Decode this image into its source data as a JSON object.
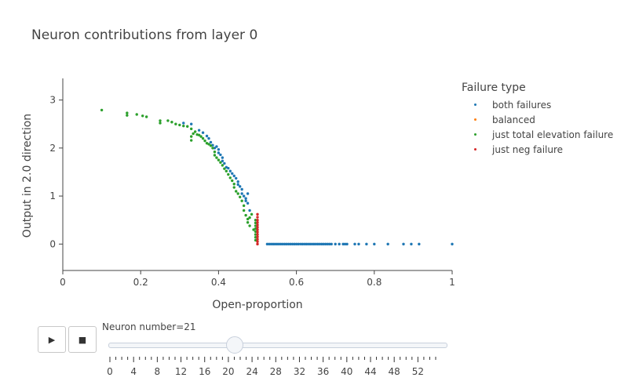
{
  "chart_data": {
    "type": "scatter",
    "title": "Neuron contributions from layer 0",
    "xlabel": "Open-proportion",
    "ylabel": "Output in 2.0 direction",
    "xlim": [
      0,
      1
    ],
    "ylim": [
      -0.55,
      3.45
    ],
    "x_ticks": [
      "0",
      "0.2",
      "0.4",
      "0.6",
      "0.8",
      "1"
    ],
    "y_ticks": [
      "0",
      "1",
      "2",
      "3"
    ],
    "legend_title": "Failure type",
    "legend_position": "top-right",
    "grid": false,
    "series": [
      {
        "name": "both failures",
        "color": "#1f77b4",
        "points": [
          [
            0.31,
            2.52
          ],
          [
            0.33,
            2.5
          ],
          [
            0.35,
            2.37
          ],
          [
            0.36,
            2.32
          ],
          [
            0.37,
            2.25
          ],
          [
            0.375,
            2.2
          ],
          [
            0.38,
            2.12
          ],
          [
            0.385,
            2.06
          ],
          [
            0.39,
            2.0
          ],
          [
            0.395,
            2.03
          ],
          [
            0.4,
            1.97
          ],
          [
            0.4,
            1.9
          ],
          [
            0.405,
            1.86
          ],
          [
            0.41,
            1.8
          ],
          [
            0.41,
            1.73
          ],
          [
            0.415,
            1.68
          ],
          [
            0.42,
            1.6
          ],
          [
            0.425,
            1.58
          ],
          [
            0.43,
            1.52
          ],
          [
            0.435,
            1.47
          ],
          [
            0.44,
            1.42
          ],
          [
            0.445,
            1.37
          ],
          [
            0.45,
            1.3
          ],
          [
            0.45,
            1.24
          ],
          [
            0.455,
            1.2
          ],
          [
            0.46,
            1.14
          ],
          [
            0.46,
            1.05
          ],
          [
            0.465,
            1.0
          ],
          [
            0.47,
            0.95
          ],
          [
            0.47,
            0.9
          ],
          [
            0.475,
            0.85
          ],
          [
            0.475,
            1.05
          ],
          [
            0.48,
            0.7
          ],
          [
            0.525,
            0
          ],
          [
            0.53,
            0
          ],
          [
            0.535,
            0
          ],
          [
            0.54,
            0
          ],
          [
            0.545,
            0
          ],
          [
            0.55,
            0
          ],
          [
            0.555,
            0
          ],
          [
            0.56,
            0
          ],
          [
            0.565,
            0
          ],
          [
            0.57,
            0
          ],
          [
            0.575,
            0
          ],
          [
            0.58,
            0
          ],
          [
            0.585,
            0
          ],
          [
            0.59,
            0
          ],
          [
            0.595,
            0
          ],
          [
            0.6,
            0
          ],
          [
            0.605,
            0
          ],
          [
            0.61,
            0
          ],
          [
            0.615,
            0
          ],
          [
            0.62,
            0
          ],
          [
            0.625,
            0
          ],
          [
            0.63,
            0
          ],
          [
            0.635,
            0
          ],
          [
            0.64,
            0
          ],
          [
            0.645,
            0
          ],
          [
            0.65,
            0
          ],
          [
            0.655,
            0
          ],
          [
            0.66,
            0
          ],
          [
            0.665,
            0
          ],
          [
            0.67,
            0
          ],
          [
            0.675,
            0
          ],
          [
            0.68,
            0
          ],
          [
            0.685,
            0
          ],
          [
            0.69,
            0
          ],
          [
            0.7,
            0
          ],
          [
            0.71,
            0
          ],
          [
            0.72,
            0
          ],
          [
            0.725,
            0
          ],
          [
            0.73,
            0
          ],
          [
            0.75,
            0
          ],
          [
            0.76,
            0
          ],
          [
            0.78,
            0
          ],
          [
            0.8,
            0
          ],
          [
            0.835,
            0
          ],
          [
            0.875,
            0
          ],
          [
            0.895,
            0
          ],
          [
            0.915,
            0
          ],
          [
            1.0,
            0
          ]
        ]
      },
      {
        "name": "balanced",
        "color": "#ff7f0e",
        "points": []
      },
      {
        "name": "just total elevation failure",
        "color": "#2ca02c",
        "points": [
          [
            0.1,
            2.79
          ],
          [
            0.165,
            2.73
          ],
          [
            0.165,
            2.68
          ],
          [
            0.19,
            2.7
          ],
          [
            0.205,
            2.67
          ],
          [
            0.215,
            2.65
          ],
          [
            0.25,
            2.57
          ],
          [
            0.25,
            2.52
          ],
          [
            0.27,
            2.57
          ],
          [
            0.28,
            2.54
          ],
          [
            0.29,
            2.5
          ],
          [
            0.3,
            2.48
          ],
          [
            0.31,
            2.46
          ],
          [
            0.32,
            2.45
          ],
          [
            0.33,
            2.4
          ],
          [
            0.33,
            2.24
          ],
          [
            0.33,
            2.16
          ],
          [
            0.335,
            2.3
          ],
          [
            0.34,
            2.34
          ],
          [
            0.345,
            2.28
          ],
          [
            0.35,
            2.27
          ],
          [
            0.355,
            2.24
          ],
          [
            0.36,
            2.2
          ],
          [
            0.365,
            2.15
          ],
          [
            0.37,
            2.1
          ],
          [
            0.375,
            2.08
          ],
          [
            0.38,
            2.05
          ],
          [
            0.385,
            2.0
          ],
          [
            0.39,
            1.92
          ],
          [
            0.39,
            1.85
          ],
          [
            0.395,
            1.8
          ],
          [
            0.4,
            1.75
          ],
          [
            0.405,
            1.7
          ],
          [
            0.41,
            1.64
          ],
          [
            0.415,
            1.57
          ],
          [
            0.42,
            1.52
          ],
          [
            0.425,
            1.45
          ],
          [
            0.43,
            1.38
          ],
          [
            0.435,
            1.32
          ],
          [
            0.44,
            1.25
          ],
          [
            0.44,
            1.18
          ],
          [
            0.445,
            1.1
          ],
          [
            0.45,
            1.05
          ],
          [
            0.455,
            0.98
          ],
          [
            0.46,
            0.9
          ],
          [
            0.465,
            0.8
          ],
          [
            0.465,
            0.7
          ],
          [
            0.47,
            0.6
          ],
          [
            0.475,
            0.52
          ],
          [
            0.475,
            0.45
          ],
          [
            0.48,
            0.38
          ],
          [
            0.48,
            0.55
          ],
          [
            0.485,
            0.62
          ],
          [
            0.49,
            0.3
          ],
          [
            0.495,
            0.5
          ],
          [
            0.495,
            0.44
          ],
          [
            0.495,
            0.38
          ],
          [
            0.495,
            0.32
          ],
          [
            0.495,
            0.26
          ],
          [
            0.495,
            0.2
          ],
          [
            0.495,
            0.14
          ],
          [
            0.495,
            0.08
          ]
        ]
      },
      {
        "name": "just neg failure",
        "color": "#d62728",
        "points": [
          [
            0.5,
            0.62
          ],
          [
            0.5,
            0.56
          ],
          [
            0.5,
            0.5
          ],
          [
            0.5,
            0.45
          ],
          [
            0.5,
            0.4
          ],
          [
            0.5,
            0.35
          ],
          [
            0.5,
            0.3
          ],
          [
            0.5,
            0.25
          ],
          [
            0.5,
            0.2
          ],
          [
            0.5,
            0.15
          ],
          [
            0.5,
            0.1
          ],
          [
            0.5,
            0.05
          ],
          [
            0.5,
            0.0
          ]
        ]
      }
    ]
  },
  "slider": {
    "label": "Neuron number=21",
    "current": 21,
    "min": 0,
    "max": 55,
    "tick_labels": [
      "0",
      "4",
      "8",
      "12",
      "16",
      "20",
      "24",
      "28",
      "32",
      "36",
      "40",
      "44",
      "48",
      "52"
    ]
  },
  "controls": {
    "play_icon": "play-icon",
    "stop_icon": "stop-icon",
    "play_glyph": "▶",
    "stop_glyph": "■"
  }
}
